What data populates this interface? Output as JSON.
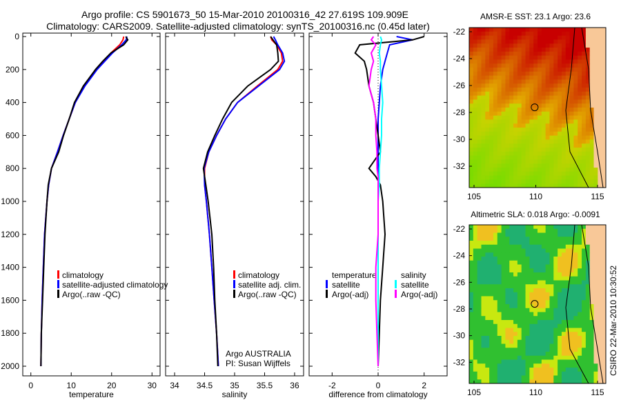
{
  "chart_data": [
    {
      "type": "line",
      "title": "Argo profile: CS 5901673_50 15-Mar-2010 20100316_42 27.619S 109.909E",
      "subtitle": "Climatology: CARS2009. Satellite-adjusted climatology: synTS_20100316.nc (0.45d later)",
      "xlabel": "temperature",
      "ylabel": "",
      "xlim": [
        -2,
        32
      ],
      "ylim": [
        2070,
        0
      ],
      "xticks": [
        "0",
        "10",
        "20",
        "30"
      ],
      "xtick_values": [
        0,
        10,
        20,
        30
      ],
      "yticks": [
        "0",
        "200",
        "400",
        "600",
        "800",
        "1000",
        "1200",
        "1400",
        "1600",
        "1800",
        "2000"
      ],
      "ytick_values": [
        0,
        200,
        400,
        600,
        800,
        1000,
        1200,
        1400,
        1600,
        1800,
        2000
      ],
      "depth": [
        0,
        20,
        50,
        100,
        150,
        200,
        300,
        400,
        500,
        600,
        700,
        800,
        900,
        1000,
        1200,
        1400,
        1600,
        1800,
        2000
      ],
      "series": [
        {
          "name": "climatology",
          "color": "#ff0000",
          "values": [
            23.0,
            22.8,
            22.0,
            19.8,
            18.0,
            16.2,
            13.3,
            11.0,
            9.5,
            8.0,
            6.6,
            5.1,
            4.4,
            4.0,
            3.4,
            3.1,
            2.8,
            2.6,
            2.5
          ]
        },
        {
          "name": "satellite-adjusted climatology",
          "color": "#0000ff",
          "values": [
            23.8,
            23.6,
            22.5,
            20.2,
            18.3,
            16.4,
            13.4,
            11.0,
            9.5,
            8.0,
            6.6,
            5.1,
            4.4,
            4.0,
            3.4,
            3.1,
            2.8,
            2.6,
            2.5
          ]
        },
        {
          "name": "Argo(..raw -QC)",
          "color": "#000000",
          "values": [
            23.5,
            24.0,
            23.0,
            19.8,
            17.8,
            16.0,
            13.0,
            10.8,
            9.5,
            8.1,
            6.9,
            5.1,
            4.3,
            4.0,
            3.5,
            3.2,
            2.9,
            2.6,
            2.5
          ]
        }
      ],
      "legend": [
        "climatology",
        "satellite-adjusted climatology",
        "Argo(..raw -QC)"
      ]
    },
    {
      "type": "line",
      "xlabel": "salinity",
      "xlim": [
        33.85,
        36.15
      ],
      "ylim": [
        2070,
        0
      ],
      "xticks": [
        "34",
        "34.5",
        "35",
        "35.5",
        "36"
      ],
      "xtick_values": [
        34,
        34.5,
        35,
        35.5,
        36
      ],
      "depth": [
        0,
        20,
        50,
        100,
        150,
        200,
        300,
        400,
        500,
        600,
        700,
        800,
        900,
        1000,
        1200,
        1400,
        1600,
        1800,
        2000
      ],
      "series": [
        {
          "name": "climatology",
          "color": "#ff0000",
          "values": [
            35.6,
            35.62,
            35.7,
            35.78,
            35.8,
            35.72,
            35.38,
            35.05,
            34.85,
            34.7,
            34.57,
            34.5,
            34.5,
            34.53,
            34.58,
            34.62,
            34.66,
            34.7,
            34.73
          ]
        },
        {
          "name": "satellite adj. clim.",
          "color": "#0000ff",
          "values": [
            35.65,
            35.68,
            35.72,
            35.8,
            35.83,
            35.75,
            35.4,
            35.05,
            34.85,
            34.7,
            34.57,
            34.49,
            34.5,
            34.53,
            34.58,
            34.62,
            34.66,
            34.7,
            34.73
          ]
        },
        {
          "name": "Argo(..raw -QC)",
          "color": "#000000",
          "values": [
            35.6,
            35.64,
            35.7,
            35.72,
            35.73,
            35.6,
            35.22,
            34.95,
            34.8,
            34.67,
            34.55,
            34.48,
            34.52,
            34.56,
            34.62,
            34.65,
            34.67,
            34.7,
            34.72
          ]
        }
      ],
      "legend": [
        "climatology",
        "satellite adj. clim.",
        "Argo(..raw -QC)"
      ],
      "annotations": [
        "Argo AUSTRALIA",
        "PI: Susan Wijffels"
      ]
    },
    {
      "type": "line",
      "xlabel": "difference from climatology",
      "xlim": [
        -3,
        3
      ],
      "ylim": [
        2070,
        0
      ],
      "xticks": [
        "-2",
        "0",
        "2"
      ],
      "xtick_values": [
        -2,
        0,
        2
      ],
      "depth": [
        0,
        20,
        50,
        100,
        150,
        200,
        300,
        400,
        500,
        600,
        700,
        800,
        850,
        900,
        1000,
        1200,
        1400,
        1600,
        1800,
        2000
      ],
      "series": [
        {
          "name": "temperature satellite",
          "color": "#0000ff",
          "values": [
            0.8,
            1.5,
            0.5,
            0.4,
            0.3,
            0.2,
            0.1,
            0.05,
            0.0,
            0.0,
            0.0,
            0.0,
            0.0,
            0.0,
            0.0,
            0.0,
            0.0,
            0.0,
            0.0,
            0.0
          ]
        },
        {
          "name": "temperature Argo(-adj)",
          "color": "#000000",
          "values": [
            2.0,
            1.5,
            -0.8,
            -1.0,
            -0.6,
            -0.5,
            -0.4,
            -0.2,
            -0.1,
            0.0,
            0.1,
            -0.4,
            -0.1,
            0.1,
            0.2,
            0.3,
            0.2,
            0.1,
            0.05,
            0.0
          ]
        },
        {
          "name": "salinity satellite",
          "color": "#00ffff",
          "values": [
            0.1,
            0.15,
            0.1,
            0.05,
            0.1,
            0.1,
            0.15,
            0.2,
            0.15,
            0.15,
            0.1,
            0.05,
            0.05,
            0.05,
            0.0,
            0.0,
            0.0,
            0.0,
            0.0,
            0.0
          ]
        },
        {
          "name": "salinity Argo(-adj)",
          "color": "#ff00ff",
          "values": [
            -0.2,
            -0.3,
            -0.1,
            -0.3,
            -0.2,
            -0.3,
            -0.4,
            -0.2,
            -0.1,
            -0.1,
            -0.05,
            -0.05,
            0.0,
            0.0,
            0.0,
            0.0,
            -0.1,
            -0.1,
            -0.05,
            0.0
          ]
        }
      ],
      "legend_headers": [
        "temperature",
        "salinity"
      ],
      "legend": [
        "satellite",
        "Argo(-adj)",
        "satellite",
        "Argo(-adj)"
      ]
    },
    {
      "type": "heatmap",
      "title": "AMSR-E SST: 23.1 Argo: 23.6",
      "xticks": [
        "105",
        "110",
        "115"
      ],
      "yticks": [
        "-22",
        "-24",
        "-26",
        "-28",
        "-30",
        "-32"
      ],
      "profile_location": [
        109.909,
        -27.619
      ]
    },
    {
      "type": "heatmap",
      "title": "Altimetric SLA: 0.018 Argo: -0.0091",
      "xticks": [
        "105",
        "110",
        "115"
      ],
      "yticks": [
        "-22",
        "-24",
        "-26",
        "-28",
        "-30",
        "-32"
      ],
      "profile_location": [
        109.909,
        -27.619
      ]
    }
  ],
  "footer": "CSIRO 22-Mar-2010 10:30:52"
}
